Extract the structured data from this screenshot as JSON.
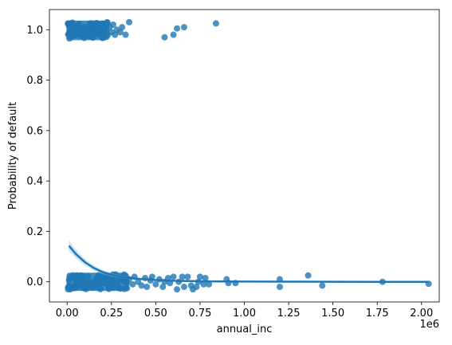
{
  "chart_data": {
    "type": "scatter",
    "title": "",
    "xlabel": "annual_inc",
    "ylabel": "Probability of default",
    "x_offset_label": "1e6",
    "xlim": [
      -0.1,
      2.1
    ],
    "ylim": [
      -0.08,
      1.08
    ],
    "x_ticks": [
      0.0,
      0.25,
      0.5,
      0.75,
      1.0,
      1.25,
      1.5,
      1.75,
      2.0
    ],
    "x_tick_labels": [
      "0.00",
      "0.25",
      "0.50",
      "0.75",
      "1.00",
      "1.25",
      "1.50",
      "1.75",
      "2.00"
    ],
    "y_ticks": [
      0.0,
      0.2,
      0.4,
      0.6,
      0.8,
      1.0
    ],
    "y_tick_labels": [
      "0.0",
      "0.2",
      "0.4",
      "0.6",
      "0.8",
      "1.0"
    ],
    "grid": false,
    "legend": "none",
    "colors": {
      "points": "#1f77b4",
      "line": "#1f77b4"
    },
    "dense_bands": [
      {
        "name": "default-1-cluster",
        "x_range": [
          0.005,
          0.23
        ],
        "y_range": [
          0.965,
          1.03
        ]
      },
      {
        "name": "default-0-cluster",
        "x_range": [
          0.005,
          0.34
        ],
        "y_range": [
          -0.03,
          0.03
        ]
      }
    ],
    "points_default_1": [
      [
        0.24,
        1.01
      ],
      [
        0.25,
        0.99
      ],
      [
        0.26,
        1.02
      ],
      [
        0.27,
        0.98
      ],
      [
        0.28,
        1.0
      ],
      [
        0.3,
        0.99
      ],
      [
        0.31,
        1.01
      ],
      [
        0.33,
        0.98
      ],
      [
        0.35,
        1.03
      ],
      [
        0.55,
        0.97
      ],
      [
        0.6,
        0.98
      ],
      [
        0.62,
        1.005
      ],
      [
        0.66,
        1.01
      ],
      [
        0.84,
        1.025
      ]
    ],
    "points_default_0": [
      [
        0.35,
        0.01
      ],
      [
        0.37,
        -0.01
      ],
      [
        0.38,
        0.02
      ],
      [
        0.4,
        0.0
      ],
      [
        0.42,
        -0.015
      ],
      [
        0.44,
        0.015
      ],
      [
        0.45,
        -0.02
      ],
      [
        0.47,
        0.005
      ],
      [
        0.48,
        0.02
      ],
      [
        0.5,
        -0.01
      ],
      [
        0.52,
        0.01
      ],
      [
        0.54,
        -0.02
      ],
      [
        0.55,
        0.0
      ],
      [
        0.57,
        0.015
      ],
      [
        0.58,
        -0.005
      ],
      [
        0.6,
        0.02
      ],
      [
        0.62,
        -0.03
      ],
      [
        0.63,
        0.0
      ],
      [
        0.65,
        0.02
      ],
      [
        0.66,
        -0.02
      ],
      [
        0.68,
        0.02
      ],
      [
        0.7,
        -0.015
      ],
      [
        0.71,
        -0.03
      ],
      [
        0.73,
        -0.02
      ],
      [
        0.74,
        0.0
      ],
      [
        0.75,
        0.02
      ],
      [
        0.77,
        -0.01
      ],
      [
        0.78,
        0.015
      ],
      [
        0.8,
        -0.01
      ],
      [
        0.9,
        0.01
      ],
      [
        0.91,
        -0.005
      ],
      [
        0.95,
        -0.005
      ],
      [
        1.2,
        0.01
      ],
      [
        1.2,
        -0.02
      ],
      [
        1.36,
        0.025
      ],
      [
        1.44,
        -0.015
      ],
      [
        1.78,
        0.0
      ],
      [
        2.04,
        -0.008
      ]
    ],
    "fit_line": {
      "x": [
        0.01,
        0.05,
        0.1,
        0.15,
        0.2,
        0.25,
        0.3,
        0.4,
        0.5,
        0.6,
        0.8,
        1.0,
        1.25,
        1.5,
        1.75,
        2.04
      ],
      "y": [
        0.143,
        0.11,
        0.078,
        0.055,
        0.039,
        0.028,
        0.02,
        0.012,
        0.007,
        0.004,
        0.002,
        0.001,
        0.0005,
        0.0002,
        0.0001,
        0.0
      ]
    }
  }
}
